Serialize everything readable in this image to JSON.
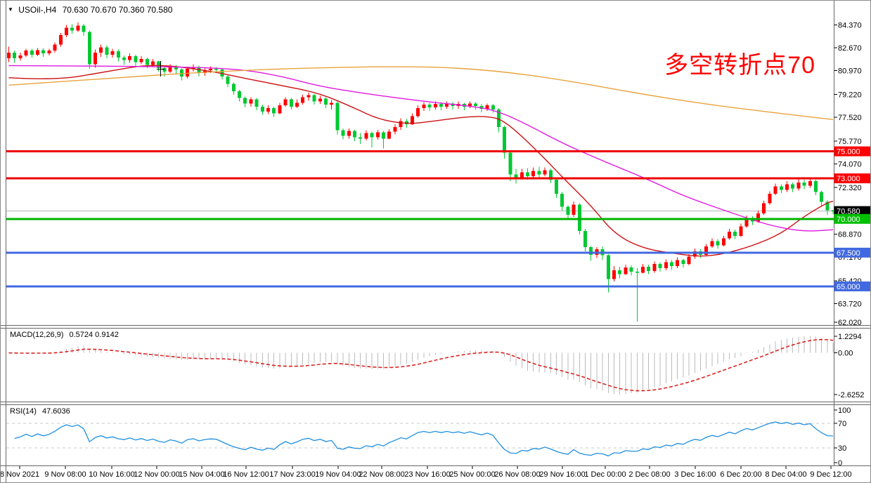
{
  "window": {
    "bg": "#ffffff",
    "frame_color": "#666666"
  },
  "header": {
    "arrow": "▼",
    "symbol": "USOil-,H4",
    "ohlc": "70.630 70.670 70.360 70.580"
  },
  "annotation": {
    "text": "多空转折点70",
    "color": "#ff0000"
  },
  "price_axis": {
    "ticks": [
      [
        84.37,
        "84.370"
      ],
      [
        82.67,
        "82.670"
      ],
      [
        80.97,
        "80.970"
      ],
      [
        79.22,
        "79.220"
      ],
      [
        77.52,
        "77.520"
      ],
      [
        75.77,
        "75.770"
      ],
      [
        74.07,
        "74.070"
      ],
      [
        72.32,
        "72.320"
      ],
      [
        68.87,
        "68.870"
      ],
      [
        67.17,
        "67.170"
      ],
      [
        65.42,
        "65.420"
      ],
      [
        63.72,
        "63.720"
      ],
      [
        62.02,
        "62.020"
      ]
    ],
    "badges": [
      [
        75.0,
        "75.000",
        "#ff0000"
      ],
      [
        73.0,
        "73.000",
        "#ff0000"
      ],
      [
        70.58,
        "70.580",
        "#000000"
      ],
      [
        70.0,
        "70.000",
        "#00c000"
      ],
      [
        67.5,
        "67.500",
        "#4169e1"
      ],
      [
        65.0,
        "65.000",
        "#4169e1"
      ]
    ]
  },
  "time_axis": {
    "labels": [
      [
        27,
        "8 Nov 2021"
      ],
      [
        92,
        "9 Nov 08:00"
      ],
      [
        158,
        "10 Nov 16:00"
      ],
      [
        222,
        "12 Nov 00:00"
      ],
      [
        286,
        "15 Nov 04:00"
      ],
      [
        349,
        "16 Nov 12:00"
      ],
      [
        415,
        "17 Nov 23:00"
      ],
      [
        480,
        "19 Nov 04:00"
      ],
      [
        542,
        "22 Nov 08:00"
      ],
      [
        607,
        "23 Nov 16:00"
      ],
      [
        671,
        "25 Nov 00:00"
      ],
      [
        735,
        "26 Nov 08:00"
      ],
      [
        799,
        "29 Nov 16:00"
      ],
      [
        860,
        "1 Dec 00:00"
      ],
      [
        923,
        "2 Dec 08:00"
      ],
      [
        988,
        "3 Dec 16:00"
      ],
      [
        1053,
        "6 Dec 20:00"
      ],
      [
        1117,
        "8 Dec 04:00"
      ],
      [
        1181,
        "9 Dec 12:00"
      ]
    ]
  },
  "panels": {
    "macd": {
      "label": "MACD(12,26,9)",
      "values": "0.5724 0.9142",
      "axis": [
        [
          1.2294,
          "1.2294"
        ],
        [
          0,
          "0.00"
        ],
        [
          -2.6252,
          "-2.6252"
        ]
      ]
    },
    "rsi": {
      "label": "RSI(14)",
      "value": "47.6036",
      "axis": [
        [
          100,
          "100"
        ],
        [
          70,
          "70"
        ],
        [
          30,
          "30"
        ],
        [
          0,
          "0"
        ]
      ],
      "dashed_levels": [
        70,
        30
      ]
    }
  },
  "chart_data": {
    "type": "candlestick",
    "symbol": "USOil-",
    "timeframe": "H4",
    "title": "USOil-,H4 70.630 70.670 70.360 70.580",
    "note": "red = up candle, green = down candle (CN convention)",
    "candle_up_color": "#ff0000",
    "candle_down_color": "#00c832",
    "current_price": 70.58,
    "current_price_line_color": "#b4b4b4",
    "h_lines": [
      {
        "price": 75.0,
        "color": "#ee0000"
      },
      {
        "price": 73.0,
        "color": "#ee0000"
      },
      {
        "price": 70.0,
        "color": "#00b400"
      },
      {
        "price": 67.5,
        "color": "#4169e1"
      },
      {
        "price": 65.0,
        "color": "#4169e1"
      }
    ],
    "ma_lines": [
      {
        "name": "ma-fast-red",
        "color": "#cc1111",
        "points": [
          [
            0,
            80.45
          ],
          [
            8,
            80.25
          ],
          [
            17,
            80.9
          ],
          [
            25,
            81.5
          ],
          [
            35,
            80.95
          ],
          [
            41,
            80.4
          ],
          [
            47,
            79.9
          ],
          [
            54,
            79.3
          ],
          [
            60,
            78.2
          ],
          [
            64,
            77.4
          ],
          [
            69,
            77.0
          ],
          [
            74,
            77.25
          ],
          [
            79,
            77.55
          ],
          [
            83,
            77.6
          ],
          [
            86,
            77.3
          ],
          [
            92,
            74.9
          ],
          [
            96,
            73.1
          ],
          [
            101,
            71.0
          ],
          [
            105,
            68.9
          ],
          [
            110,
            67.8
          ],
          [
            116,
            67.4
          ],
          [
            120,
            67.2
          ],
          [
            124,
            67.4
          ],
          [
            129,
            68.0
          ],
          [
            134,
            68.9
          ],
          [
            138,
            70.2
          ],
          [
            142,
            71.2
          ],
          [
            143,
            71.3
          ]
        ]
      },
      {
        "name": "ma-mid-magenta",
        "color": "#e018e0",
        "points": [
          [
            0,
            81.35
          ],
          [
            23,
            81.3
          ],
          [
            39,
            81.15
          ],
          [
            47,
            80.6
          ],
          [
            54,
            79.8
          ],
          [
            63,
            79.2
          ],
          [
            72,
            78.7
          ],
          [
            79,
            78.4
          ],
          [
            84,
            78.1
          ],
          [
            89,
            77.2
          ],
          [
            96,
            75.6
          ],
          [
            103,
            74.3
          ],
          [
            111,
            72.9
          ],
          [
            117,
            71.7
          ],
          [
            125,
            70.5
          ],
          [
            132,
            69.5
          ],
          [
            138,
            69.05
          ],
          [
            143,
            69.2
          ]
        ]
      },
      {
        "name": "ma-slow-orange",
        "color": "#e8a33d",
        "points": [
          [
            0,
            79.9
          ],
          [
            17,
            80.4
          ],
          [
            35,
            80.9
          ],
          [
            53,
            81.2
          ],
          [
            72,
            81.3
          ],
          [
            84,
            81.0
          ],
          [
            96,
            80.3
          ],
          [
            109,
            79.3
          ],
          [
            120,
            78.55
          ],
          [
            131,
            77.95
          ],
          [
            143,
            77.35
          ]
        ]
      }
    ],
    "candles": [
      [
        81.9,
        82.75,
        81.6,
        82.3
      ],
      [
        82.3,
        82.45,
        81.55,
        81.9
      ],
      [
        81.9,
        82.3,
        81.7,
        82.1
      ],
      [
        82.1,
        82.6,
        82.0,
        82.45
      ],
      [
        82.45,
        82.6,
        81.95,
        82.15
      ],
      [
        82.15,
        82.65,
        82.05,
        82.5
      ],
      [
        82.5,
        82.65,
        82.0,
        82.25
      ],
      [
        82.25,
        82.6,
        82.1,
        82.45
      ],
      [
        82.45,
        83.05,
        82.3,
        82.9
      ],
      [
        82.9,
        83.75,
        82.75,
        83.6
      ],
      [
        83.6,
        84.35,
        83.45,
        84.15
      ],
      [
        84.15,
        84.4,
        83.7,
        83.95
      ],
      [
        83.95,
        84.55,
        83.85,
        84.3
      ],
      [
        84.3,
        84.45,
        83.55,
        83.85
      ],
      [
        83.85,
        83.95,
        81.1,
        81.45
      ],
      [
        81.45,
        82.55,
        81.2,
        82.3
      ],
      [
        82.3,
        82.9,
        82.0,
        82.7
      ],
      [
        82.7,
        82.85,
        81.9,
        82.15
      ],
      [
        82.15,
        82.6,
        81.95,
        82.4
      ],
      [
        82.4,
        82.55,
        81.65,
        81.95
      ],
      [
        81.95,
        82.1,
        81.4,
        81.75
      ],
      [
        81.75,
        82.25,
        81.55,
        82.05
      ],
      [
        82.05,
        82.15,
        81.3,
        81.6
      ],
      [
        81.6,
        82.05,
        81.45,
        81.85
      ],
      [
        81.85,
        81.95,
        81.15,
        81.4
      ],
      [
        81.4,
        81.85,
        81.25,
        81.65
      ],
      [
        81.65,
        81.7,
        80.9,
        81.15
      ],
      [
        81.15,
        81.3,
        80.55,
        80.9
      ],
      [
        80.9,
        81.45,
        80.8,
        81.3
      ],
      [
        81.3,
        81.4,
        80.75,
        81.05
      ],
      [
        81.05,
        81.15,
        80.25,
        80.55
      ],
      [
        80.55,
        81.25,
        80.4,
        81.1
      ],
      [
        81.1,
        81.45,
        80.9,
        81.25
      ],
      [
        81.25,
        81.35,
        80.55,
        80.8
      ],
      [
        80.8,
        81.2,
        80.6,
        81.0
      ],
      [
        81.0,
        81.3,
        80.8,
        81.1
      ],
      [
        81.1,
        81.25,
        80.8,
        81.05
      ],
      [
        81.05,
        81.15,
        80.3,
        80.55
      ],
      [
        80.55,
        80.65,
        79.75,
        80.0
      ],
      [
        80.0,
        80.1,
        79.2,
        79.45
      ],
      [
        79.45,
        79.55,
        78.7,
        78.95
      ],
      [
        78.95,
        79.05,
        78.25,
        78.55
      ],
      [
        78.55,
        79.0,
        78.3,
        78.85
      ],
      [
        78.85,
        78.95,
        78.05,
        78.3
      ],
      [
        78.3,
        78.45,
        77.7,
        77.95
      ],
      [
        77.95,
        78.4,
        77.75,
        78.2
      ],
      [
        78.2,
        78.3,
        77.55,
        77.8
      ],
      [
        77.8,
        78.6,
        77.75,
        78.4
      ],
      [
        78.4,
        79.0,
        78.3,
        78.85
      ],
      [
        78.85,
        78.95,
        78.1,
        78.3
      ],
      [
        78.3,
        78.85,
        78.2,
        78.6
      ],
      [
        78.6,
        79.2,
        78.45,
        79.0
      ],
      [
        79.0,
        79.35,
        78.75,
        79.15
      ],
      [
        79.15,
        79.25,
        78.45,
        78.7
      ],
      [
        78.7,
        79.1,
        78.5,
        78.9
      ],
      [
        78.9,
        79.0,
        78.2,
        78.45
      ],
      [
        78.45,
        78.8,
        78.1,
        78.6
      ],
      [
        78.6,
        78.7,
        76.25,
        76.55
      ],
      [
        76.55,
        76.7,
        75.9,
        76.15
      ],
      [
        76.15,
        76.7,
        75.95,
        76.5
      ],
      [
        76.5,
        76.6,
        75.75,
        76.05
      ],
      [
        76.05,
        76.35,
        75.55,
        75.95
      ],
      [
        75.95,
        76.55,
        75.8,
        76.35
      ],
      [
        76.35,
        76.45,
        75.3,
        76.05
      ],
      [
        76.05,
        76.6,
        75.85,
        76.4
      ],
      [
        76.4,
        76.5,
        75.2,
        75.95
      ],
      [
        75.95,
        76.65,
        75.9,
        76.45
      ],
      [
        76.45,
        77.0,
        76.25,
        76.8
      ],
      [
        76.8,
        77.45,
        76.6,
        77.25
      ],
      [
        77.25,
        77.4,
        76.75,
        77.0
      ],
      [
        77.0,
        77.8,
        76.95,
        77.6
      ],
      [
        77.6,
        78.4,
        77.5,
        78.2
      ],
      [
        78.2,
        78.65,
        78.0,
        78.45
      ],
      [
        78.45,
        78.6,
        78.0,
        78.25
      ],
      [
        78.25,
        78.7,
        78.1,
        78.5
      ],
      [
        78.5,
        78.65,
        78.05,
        78.3
      ],
      [
        78.3,
        78.7,
        78.15,
        78.55
      ],
      [
        78.55,
        78.65,
        78.1,
        78.35
      ],
      [
        78.35,
        78.7,
        78.15,
        78.5
      ],
      [
        78.5,
        78.6,
        78.05,
        78.3
      ],
      [
        78.3,
        78.7,
        78.2,
        78.55
      ],
      [
        78.55,
        78.65,
        78.1,
        78.35
      ],
      [
        78.35,
        78.5,
        77.9,
        78.15
      ],
      [
        78.15,
        78.55,
        78.0,
        78.4
      ],
      [
        78.4,
        78.5,
        77.85,
        78.1
      ],
      [
        78.1,
        78.2,
        76.4,
        76.8
      ],
      [
        76.8,
        76.9,
        74.45,
        74.9
      ],
      [
        74.9,
        75.05,
        72.8,
        73.3
      ],
      [
        73.3,
        73.7,
        72.6,
        72.95
      ],
      [
        72.95,
        73.7,
        72.9,
        73.45
      ],
      [
        73.45,
        73.75,
        72.9,
        73.15
      ],
      [
        73.15,
        73.8,
        73.05,
        73.55
      ],
      [
        73.55,
        73.85,
        73.05,
        73.3
      ],
      [
        73.3,
        73.8,
        73.15,
        73.6
      ],
      [
        73.6,
        73.7,
        72.65,
        72.9
      ],
      [
        72.9,
        73.0,
        71.55,
        71.85
      ],
      [
        71.85,
        72.0,
        70.6,
        70.9
      ],
      [
        70.9,
        71.0,
        69.95,
        70.3
      ],
      [
        70.3,
        71.3,
        70.15,
        71.05
      ],
      [
        71.05,
        71.15,
        68.85,
        69.1
      ],
      [
        69.1,
        69.25,
        67.6,
        67.9
      ],
      [
        67.9,
        68.0,
        66.9,
        67.35
      ],
      [
        67.35,
        67.9,
        67.1,
        67.75
      ],
      [
        67.75,
        67.95,
        66.95,
        67.3
      ],
      [
        67.3,
        67.4,
        64.55,
        65.55
      ],
      [
        65.55,
        66.5,
        65.35,
        66.2
      ],
      [
        66.2,
        66.45,
        65.6,
        65.9
      ],
      [
        65.9,
        66.6,
        65.85,
        66.4
      ],
      [
        66.4,
        66.55,
        65.8,
        66.1
      ],
      [
        66.1,
        66.35,
        62.4,
        66.0
      ],
      [
        66.0,
        66.65,
        65.95,
        66.45
      ],
      [
        66.45,
        66.6,
        65.9,
        66.15
      ],
      [
        66.15,
        66.85,
        66.0,
        66.65
      ],
      [
        66.65,
        66.8,
        66.1,
        66.35
      ],
      [
        66.35,
        67.0,
        66.2,
        66.8
      ],
      [
        66.8,
        66.95,
        66.25,
        66.5
      ],
      [
        66.5,
        67.15,
        66.35,
        66.95
      ],
      [
        66.95,
        67.05,
        66.4,
        66.65
      ],
      [
        66.65,
        67.4,
        66.55,
        67.2
      ],
      [
        67.2,
        67.8,
        67.05,
        67.6
      ],
      [
        67.6,
        67.75,
        67.1,
        67.35
      ],
      [
        67.35,
        68.15,
        67.25,
        67.95
      ],
      [
        67.95,
        68.55,
        67.85,
        68.35
      ],
      [
        68.35,
        68.5,
        67.8,
        68.05
      ],
      [
        68.05,
        68.75,
        67.95,
        68.55
      ],
      [
        68.55,
        69.25,
        68.45,
        69.05
      ],
      [
        69.05,
        69.2,
        68.5,
        68.75
      ],
      [
        68.75,
        69.65,
        68.65,
        69.45
      ],
      [
        69.45,
        70.25,
        69.35,
        70.05
      ],
      [
        70.05,
        70.2,
        69.55,
        69.8
      ],
      [
        69.8,
        70.6,
        69.7,
        70.4
      ],
      [
        70.4,
        71.35,
        70.3,
        71.15
      ],
      [
        71.15,
        72.05,
        71.05,
        71.85
      ],
      [
        71.85,
        72.6,
        71.75,
        72.4
      ],
      [
        72.4,
        72.55,
        71.9,
        72.15
      ],
      [
        72.15,
        72.8,
        72.0,
        72.55
      ],
      [
        72.55,
        72.7,
        72.0,
        72.25
      ],
      [
        72.25,
        73.0,
        72.1,
        72.7
      ],
      [
        72.7,
        72.9,
        72.2,
        72.45
      ],
      [
        72.45,
        73.05,
        72.3,
        72.8
      ],
      [
        72.8,
        72.9,
        71.75,
        72.0
      ],
      [
        72.0,
        72.1,
        70.95,
        71.25
      ],
      [
        71.25,
        71.4,
        70.3,
        70.65
      ],
      [
        70.63,
        70.67,
        70.36,
        70.58
      ]
    ],
    "macd": {
      "fast": 12,
      "slow": 26,
      "signal": 9,
      "hist_color": "#bbbbbb",
      "line_color": "#dd2222",
      "scale_top": 1.2294,
      "scale_bottom": -2.6252,
      "current_main": 0.5724,
      "current_signal": 0.9142
    },
    "rsi": {
      "period": 14,
      "color": "#1e8fdf",
      "value": 47.6036,
      "levels": [
        100,
        70,
        30,
        0
      ]
    }
  }
}
